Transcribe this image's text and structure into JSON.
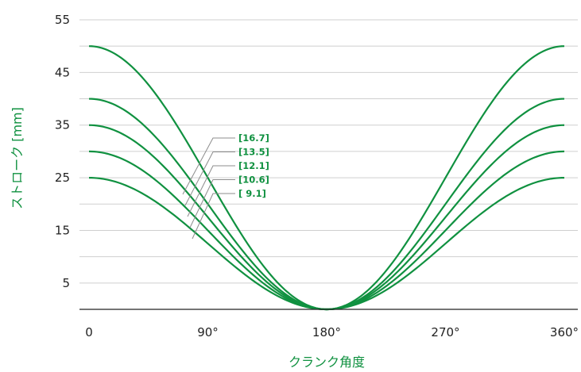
{
  "chart_data": {
    "type": "line",
    "xlabel": "クランク角度",
    "ylabel": "ストローク [mm]",
    "x_ticks": [
      "0",
      "90°",
      "180°",
      "270°",
      "360°"
    ],
    "y_ticks": [
      "5",
      "15",
      "25",
      "35",
      "45",
      "55"
    ],
    "xlim": [
      0,
      360
    ],
    "ylim": [
      0,
      55
    ],
    "grid": "horizontal",
    "colors": {
      "series": "#109140",
      "label": "#109140",
      "tick": "#222222",
      "grid": "#cfcfcf",
      "leader": "#8c8c8c",
      "axis": "#222222"
    },
    "series": [
      {
        "stroke": 50,
        "annotation": ""
      },
      {
        "stroke": 40,
        "annotation": "[16.7]"
      },
      {
        "stroke": 35,
        "annotation": "[13.5]"
      },
      {
        "stroke": 30,
        "annotation": "[12.1]"
      },
      {
        "stroke": 25,
        "annotation": "[10.6]"
      }
    ],
    "extra_annotations": [
      "[ 9.1]"
    ]
  }
}
